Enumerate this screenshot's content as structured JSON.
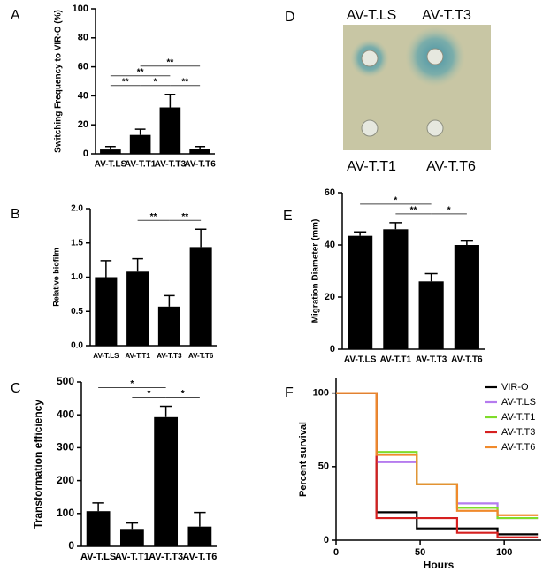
{
  "chart_data": [
    {
      "panel": "A",
      "type": "bar",
      "ylabel": "Switching Frequency to VIR-O (%)",
      "categories": [
        "AV-T.LS",
        "AV-T.T1",
        "AV-T.T3",
        "AV-T.T6"
      ],
      "values": [
        3,
        13,
        32,
        3.5
      ],
      "errors": [
        2,
        4,
        9,
        1.5
      ],
      "color": "#000000",
      "ylim": [
        0,
        100
      ],
      "yticks": [
        0,
        20,
        40,
        60,
        80,
        100
      ],
      "significance": [
        {
          "from": "AV-T.LS",
          "to": "AV-T.T1",
          "label": "**"
        },
        {
          "from": "AV-T.T1",
          "to": "AV-T.T3",
          "label": "*"
        },
        {
          "from": "AV-T.T3",
          "to": "AV-T.T6",
          "label": "**"
        },
        {
          "from": "AV-T.LS",
          "to": "AV-T.T3",
          "label": "**"
        },
        {
          "from": "AV-T.T1",
          "to": "AV-T.T6",
          "label": "**"
        }
      ]
    },
    {
      "panel": "B",
      "type": "bar",
      "ylabel": "Relative biofilm",
      "categories": [
        "AV-T.LS",
        "AV-T.T1",
        "AV-T.T3",
        "AV-T.T6"
      ],
      "values": [
        1.0,
        1.08,
        0.57,
        1.44
      ],
      "errors": [
        0.24,
        0.19,
        0.16,
        0.26
      ],
      "color": "#000000",
      "ylim": [
        0,
        2
      ],
      "yticks": [
        {
          "value": 0,
          "label": "0.0"
        },
        0.5,
        {
          "value": 1,
          "label": "1.0"
        },
        1.5,
        {
          "value": 2,
          "label": "2.0"
        }
      ],
      "significance": [
        {
          "from": "AV-T.T1",
          "to": "AV-T.T3",
          "label": "**"
        },
        {
          "from": "AV-T.T3",
          "to": "AV-T.T6",
          "label": "**"
        }
      ]
    },
    {
      "panel": "C",
      "type": "bar",
      "ylabel": "Transformation efficiency",
      "categories": [
        "AV-T.LS",
        "AV-T.T1",
        "AV-T.T3",
        "AV-T.T6"
      ],
      "values": [
        107,
        53,
        393,
        60
      ],
      "errors": [
        25,
        18,
        33,
        43
      ],
      "color": "#000000",
      "ylim": [
        0,
        500
      ],
      "yticks": [
        0,
        100,
        200,
        300,
        400,
        500
      ],
      "significance": [
        {
          "from": "AV-T.T1",
          "to": "AV-T.T3",
          "label": "*"
        },
        {
          "from": "AV-T.T3",
          "to": "AV-T.T6",
          "label": "*"
        },
        {
          "from": "AV-T.LS",
          "to": "AV-T.T3",
          "label": "*"
        }
      ]
    },
    {
      "panel": "E",
      "type": "bar",
      "ylabel": "Migration Diameter (mm)",
      "categories": [
        "AV-T.LS",
        "AV-T.T1",
        "AV-T.T3",
        "AV-T.T6"
      ],
      "values": [
        43.5,
        46,
        26,
        40
      ],
      "errors": [
        1.5,
        2.5,
        3,
        1.5
      ],
      "color": "#000000",
      "ylim": [
        0,
        60
      ],
      "yticks": [
        0,
        20,
        40,
        60
      ],
      "significance": [
        {
          "from": "AV-T.T1",
          "to": "AV-T.T3",
          "label": "**"
        },
        {
          "from": "AV-T.T3",
          "to": "AV-T.T6",
          "label": "*"
        },
        {
          "from": "AV-T.LS",
          "to": "AV-T.T3",
          "label": "*"
        }
      ]
    },
    {
      "panel": "F",
      "type": "line",
      "step": true,
      "ylabel": "Percent survival",
      "xlabel": "Hours",
      "x": [
        0,
        24,
        48,
        72,
        96,
        120
      ],
      "xlim": [
        0,
        122
      ],
      "xticks": [
        0,
        50,
        100
      ],
      "ylim": [
        0,
        110
      ],
      "yticks": [
        0,
        50,
        100
      ],
      "legend": "upper right",
      "series": [
        {
          "name": "VIR-O",
          "color": "#000000",
          "values": [
            100,
            19,
            8,
            8,
            4,
            4
          ]
        },
        {
          "name": "AV-T.LS",
          "color": "#b57bee",
          "values": [
            100,
            53,
            38,
            25,
            15,
            15
          ]
        },
        {
          "name": "AV-T.T1",
          "color": "#7fdc2a",
          "values": [
            100,
            60,
            38,
            22,
            15,
            15
          ]
        },
        {
          "name": "AV-T.T3",
          "color": "#d62020",
          "values": [
            100,
            15,
            15,
            5,
            2,
            2
          ]
        },
        {
          "name": "AV-T.T6",
          "color": "#f08a2c",
          "values": [
            100,
            58,
            38,
            20,
            17,
            17
          ]
        }
      ]
    }
  ],
  "image_panel": {
    "panel": "D",
    "labels": [
      "AV-T.LS",
      "AV-T.T3",
      "AV-T.T1",
      "AV-T.T6"
    ]
  }
}
